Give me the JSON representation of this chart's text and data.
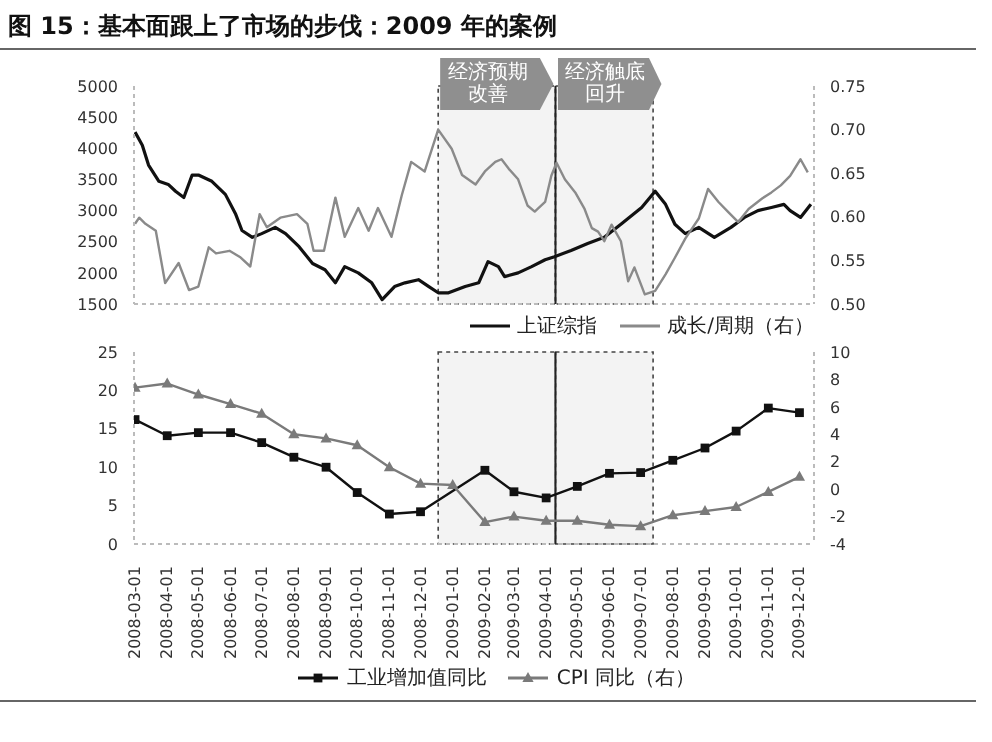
{
  "chart_data": [
    {
      "type": "line",
      "title": "图 15：基本面跟上了市场的步伐：2009 年的案例",
      "xlim": [
        "2008-02-29",
        "2009-12-15"
      ],
      "ylim": [
        1500,
        5000
      ],
      "yticks": [
        1500,
        2000,
        2500,
        3000,
        3500,
        4000,
        4500,
        5000
      ],
      "y2lim": [
        0.5,
        0.75
      ],
      "y2ticks": [
        {
          "value": 0.5,
          "label": "0.50"
        },
        {
          "value": 0.55,
          "label": "0.55"
        },
        {
          "value": 0.6,
          "label": "0.60"
        },
        {
          "value": 0.65,
          "label": "0.65"
        },
        {
          "value": 0.7,
          "label": "0.70"
        },
        {
          "value": 0.75,
          "label": "0.75"
        }
      ],
      "tick_labels": "y",
      "legend": "bottom right",
      "marker": "none",
      "bands": [
        {
          "axis": "x",
          "from": "2008-12-18",
          "to": "2009-04-10",
          "label": "经济预期改善"
        },
        {
          "axis": "x",
          "from": "2009-04-10",
          "to": "2009-07-13",
          "label": "经济触底回升"
        }
      ],
      "ref_lines": [
        {
          "axis": "x",
          "value": "2009-04-10"
        }
      ],
      "series": [
        {
          "name": "上证综指",
          "color": "#111111",
          "x": [
            "2008-03-01",
            "2008-03-08",
            "2008-03-14",
            "2008-03-24",
            "2008-04-02",
            "2008-04-09",
            "2008-04-17",
            "2008-04-25",
            "2008-05-01",
            "2008-05-14",
            "2008-05-27",
            "2008-06-06",
            "2008-06-12",
            "2008-06-22",
            "2008-07-01",
            "2008-07-14",
            "2008-07-24",
            "2008-08-06",
            "2008-08-19",
            "2008-08-31",
            "2008-09-10",
            "2008-09-19",
            "2008-10-02",
            "2008-10-15",
            "2008-10-25",
            "2008-11-06",
            "2008-11-16",
            "2008-11-29",
            "2008-12-09",
            "2008-12-18",
            "2008-12-28",
            "2009-01-13",
            "2009-01-26",
            "2009-02-04",
            "2009-02-14",
            "2009-02-20",
            "2009-03-05",
            "2009-03-18",
            "2009-03-31",
            "2009-04-09",
            "2009-04-25",
            "2009-05-11",
            "2009-05-27",
            "2009-06-12",
            "2009-07-02",
            "2009-07-15",
            "2009-07-25",
            "2009-08-03",
            "2009-08-13",
            "2009-08-26",
            "2009-09-10",
            "2009-09-26",
            "2009-10-09",
            "2009-10-22",
            "2009-11-04",
            "2009-11-16",
            "2009-11-22",
            "2009-12-02",
            "2009-12-12"
          ],
          "values": [
            4260,
            4050,
            3730,
            3470,
            3420,
            3310,
            3210,
            3570,
            3570,
            3470,
            3260,
            2940,
            2680,
            2570,
            2630,
            2730,
            2630,
            2420,
            2150,
            2050,
            1840,
            2100,
            2000,
            1840,
            1570,
            1780,
            1840,
            1890,
            1780,
            1680,
            1680,
            1780,
            1840,
            2180,
            2100,
            1940,
            2000,
            2100,
            2210,
            2260,
            2360,
            2470,
            2570,
            2780,
            3050,
            3310,
            3100,
            2780,
            2630,
            2730,
            2570,
            2730,
            2890,
            3000,
            3050,
            3100,
            3000,
            2890,
            3100
          ]
        },
        {
          "name": "成长/周期（右）",
          "color": "#8a8a8a",
          "axis": "y2",
          "x": [
            "2008-03-01",
            "2008-03-05",
            "2008-03-11",
            "2008-03-21",
            "2008-03-30",
            "2008-04-12",
            "2008-04-22",
            "2008-05-01",
            "2008-05-11",
            "2008-05-18",
            "2008-05-31",
            "2008-06-10",
            "2008-06-20",
            "2008-06-29",
            "2008-07-06",
            "2008-07-19",
            "2008-08-04",
            "2008-08-14",
            "2008-08-20",
            "2008-08-30",
            "2008-09-10",
            "2008-09-19",
            "2008-10-02",
            "2008-10-12",
            "2008-10-21",
            "2008-11-03",
            "2008-11-13",
            "2008-11-22",
            "2008-12-05",
            "2008-12-18",
            "2008-12-31",
            "2009-01-10",
            "2009-01-23",
            "2009-02-01",
            "2009-02-11",
            "2009-02-17",
            "2009-02-24",
            "2009-03-05",
            "2009-03-14",
            "2009-03-21",
            "2009-03-31",
            "2009-04-06",
            "2009-04-11",
            "2009-04-19",
            "2009-04-29",
            "2009-05-08",
            "2009-05-15",
            "2009-05-21",
            "2009-05-27",
            "2009-06-03",
            "2009-06-12",
            "2009-06-19",
            "2009-06-25",
            "2009-07-05",
            "2009-07-15",
            "2009-07-25",
            "2009-08-03",
            "2009-08-13",
            "2009-08-26",
            "2009-09-04",
            "2009-09-14",
            "2009-09-23",
            "2009-10-03",
            "2009-10-13",
            "2009-10-26",
            "2009-11-04",
            "2009-11-13",
            "2009-11-22",
            "2009-12-02",
            "2009-12-09"
          ],
          "values": [
            0.592,
            0.599,
            0.592,
            0.584,
            0.524,
            0.547,
            0.516,
            0.52,
            0.565,
            0.558,
            0.561,
            0.554,
            0.543,
            0.603,
            0.588,
            0.599,
            0.603,
            0.592,
            0.561,
            0.561,
            0.622,
            0.577,
            0.61,
            0.584,
            0.61,
            0.577,
            0.625,
            0.663,
            0.652,
            0.7,
            0.678,
            0.648,
            0.637,
            0.652,
            0.663,
            0.666,
            0.655,
            0.643,
            0.613,
            0.606,
            0.617,
            0.647,
            0.662,
            0.643,
            0.628,
            0.609,
            0.587,
            0.583,
            0.572,
            0.591,
            0.572,
            0.526,
            0.542,
            0.511,
            0.515,
            0.534,
            0.553,
            0.575,
            0.598,
            0.632,
            0.617,
            0.606,
            0.594,
            0.609,
            0.621,
            0.628,
            0.636,
            0.647,
            0.666,
            0.651
          ]
        }
      ]
    },
    {
      "type": "line",
      "xlim": [
        "2008-02-29",
        "2009-12-15"
      ],
      "x": [
        "2008-03-01",
        "2008-04-01",
        "2008-05-01",
        "2008-06-01",
        "2008-07-01",
        "2008-08-01",
        "2008-09-01",
        "2008-10-01",
        "2008-11-01",
        "2008-12-01",
        "2009-01-01",
        "2009-02-01",
        "2009-03-01",
        "2009-04-01",
        "2009-05-01",
        "2009-06-01",
        "2009-07-01",
        "2009-08-01",
        "2009-09-01",
        "2009-10-01",
        "2009-11-01",
        "2009-12-01"
      ],
      "xticks": [
        "2008-03-01",
        "2008-04-01",
        "2008-05-01",
        "2008-06-01",
        "2008-07-01",
        "2008-08-01",
        "2008-09-01",
        "2008-10-01",
        "2008-11-01",
        "2008-12-01",
        "2009-01-01",
        "2009-02-01",
        "2009-03-01",
        "2009-04-01",
        "2009-05-01",
        "2009-06-01",
        "2009-07-01",
        "2009-08-01",
        "2009-09-01",
        "2009-10-01",
        "2009-11-01",
        "2009-12-01"
      ],
      "ylim": [
        0,
        25
      ],
      "yticks": [
        0,
        5,
        10,
        15,
        20,
        25
      ],
      "y2lim": [
        -4,
        10
      ],
      "y2ticks": [
        -4,
        -2,
        0,
        2,
        4,
        6,
        8,
        10
      ],
      "legend": "bottom",
      "bands": [
        {
          "axis": "x",
          "from": "2008-12-18",
          "to": "2009-04-10"
        },
        {
          "axis": "x",
          "from": "2009-04-10",
          "to": "2009-07-13"
        }
      ],
      "ref_lines": [
        {
          "axis": "x",
          "value": "2009-04-10"
        }
      ],
      "series": [
        {
          "name": "工业增加值同比",
          "color": "#111111",
          "marker": "square",
          "x": [
            "2008-03-01",
            "2008-04-01",
            "2008-05-01",
            "2008-06-01",
            "2008-07-01",
            "2008-08-01",
            "2008-09-01",
            "2008-10-01",
            "2008-11-01",
            "2008-12-01",
            "2009-02-01",
            "2009-03-01",
            "2009-04-01",
            "2009-05-01",
            "2009-06-01",
            "2009-07-01",
            "2009-08-01",
            "2009-09-01",
            "2009-10-01",
            "2009-11-01",
            "2009-12-01"
          ],
          "values": [
            16.2,
            14.1,
            14.5,
            14.5,
            13.2,
            11.3,
            10.0,
            6.7,
            3.9,
            4.2,
            9.6,
            6.8,
            6.0,
            7.5,
            9.2,
            9.3,
            10.9,
            12.5,
            14.7,
            17.7,
            17.1
          ]
        },
        {
          "name": "CPI 同比（右）",
          "color": "#7a7a7a",
          "marker": "triangle",
          "axis": "y2",
          "values": [
            7.4,
            7.7,
            6.9,
            6.2,
            5.5,
            4.0,
            3.7,
            3.2,
            1.6,
            0.4,
            0.3,
            -2.4,
            -2.0,
            -2.3,
            -2.3,
            -2.6,
            -2.7,
            -1.9,
            -1.6,
            -1.3,
            -0.2,
            0.9
          ]
        }
      ]
    }
  ]
}
